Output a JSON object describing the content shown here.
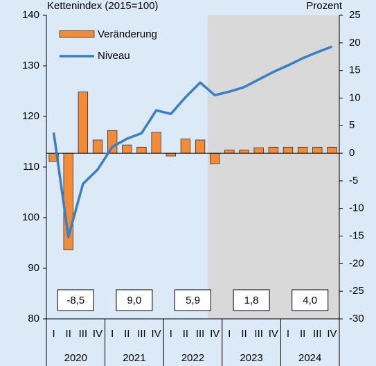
{
  "chart_data": {
    "type": "bar-line",
    "left_axis_label": "Kettenindex (2015=100)",
    "right_axis_label": "Prozent",
    "categories": [
      "I",
      "II",
      "III",
      "IV",
      "I",
      "II",
      "III",
      "IV",
      "I",
      "II",
      "III",
      "IV",
      "I",
      "II",
      "III",
      "IV",
      "I",
      "II",
      "III",
      "IV"
    ],
    "year_labels": [
      "2020",
      "2021",
      "2022",
      "2023",
      "2024"
    ],
    "series": [
      {
        "name": "Veränderung",
        "color": "#f28c38",
        "axis": "y2",
        "values": [
          -1.5,
          -17.5,
          11.1,
          2.4,
          4.1,
          1.5,
          1.1,
          3.8,
          -0.5,
          2.6,
          2.4,
          -1.9,
          0.6,
          0.6,
          1.0,
          1.1,
          1.1,
          1.1,
          1.1,
          1.1
        ]
      },
      {
        "name": "Niveau",
        "color": "#3a7dc9",
        "axis": "y",
        "values": [
          116.8,
          96.2,
          106.7,
          109.5,
          114.0,
          115.6,
          116.7,
          121.2,
          120.5,
          123.8,
          126.7,
          124.2,
          124.9,
          125.8,
          127.3,
          128.8,
          130.1,
          131.5,
          132.7,
          133.8
        ]
      }
    ],
    "annual": {
      "values": [
        -8.5,
        9.0,
        5.9,
        1.8,
        4.0
      ],
      "value_labels": [
        "-8,5",
        "9,0",
        "5,9",
        "1,8",
        "4,0"
      ]
    },
    "ylim": [
      80,
      140
    ],
    "yticks": [
      80,
      90,
      100,
      110,
      120,
      130,
      140
    ],
    "y2lim": [
      -30,
      25
    ],
    "y2ticks": [
      -30,
      -25,
      -20,
      -15,
      -10,
      -5,
      0,
      5,
      10,
      15,
      20,
      25
    ]
  }
}
